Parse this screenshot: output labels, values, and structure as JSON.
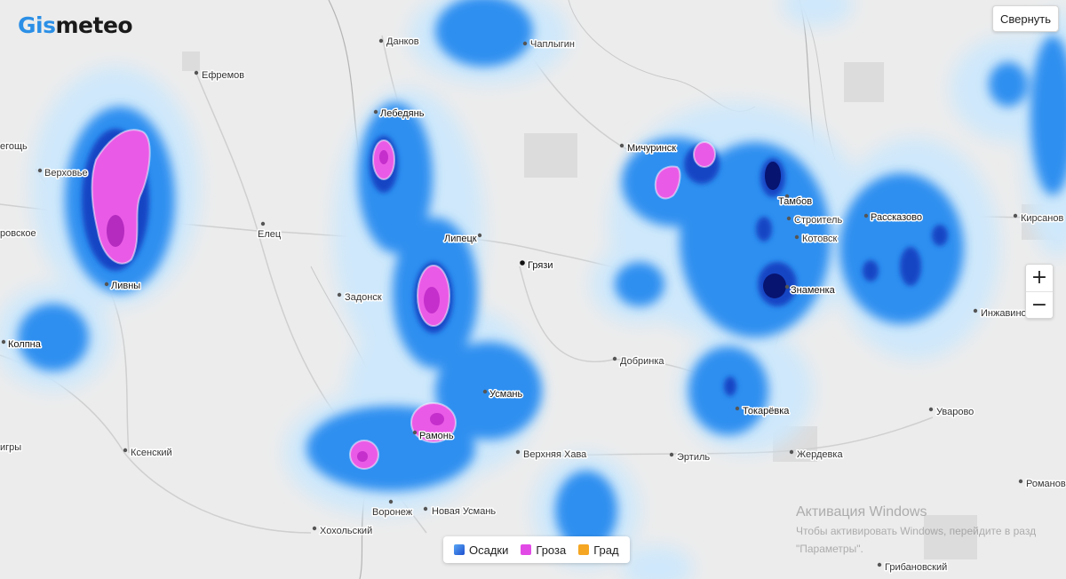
{
  "app": {
    "logo_part1": "Gis",
    "logo_part2": "meteo",
    "collapse_label": "Свернуть",
    "zoom_in_label": "+",
    "zoom_out_label": "−"
  },
  "legend": {
    "items": [
      {
        "label": "Осадки",
        "color": "#3d7fe6"
      },
      {
        "label": "Гроза",
        "color": "#e24ae6"
      },
      {
        "label": "Град",
        "color": "#f5a623"
      }
    ]
  },
  "watermark": {
    "title": "Активация Windows",
    "line1": "Чтобы активировать Windows, перейдите в разд",
    "line2": "\"Параметры\"."
  },
  "cities": [
    "Данков",
    "Чаплыгин",
    "Ефремов",
    "Лебедянь",
    "Мичуринск",
    "егощь",
    "Верховье",
    "Тамбов",
    "Строитель",
    "Рассказово",
    "Кирсанов",
    "Котовск",
    "ровское",
    "Елец",
    "Липецк",
    "Грязи",
    "Ливны",
    "Задонск",
    "Знаменка",
    "Инжавино",
    "Колпна",
    "Добринка",
    "Усмань",
    "Токарёвка",
    "Уварово",
    "Рамонь",
    "Ксенский",
    "Верхняя Хава",
    "Эртиль",
    "Жердевка",
    "игры",
    "Романов",
    "Воронеж",
    "Новая Усмань",
    "Хохольский",
    "Грибановский"
  ],
  "colors": {
    "background": "#ececec",
    "precip_light": "#d6ecfb",
    "precip_medium": "#2a8ef0",
    "precip_heavy": "#0c1f9c",
    "storm": "#ea5ce6",
    "logo_accent": "#2b8fe6"
  }
}
